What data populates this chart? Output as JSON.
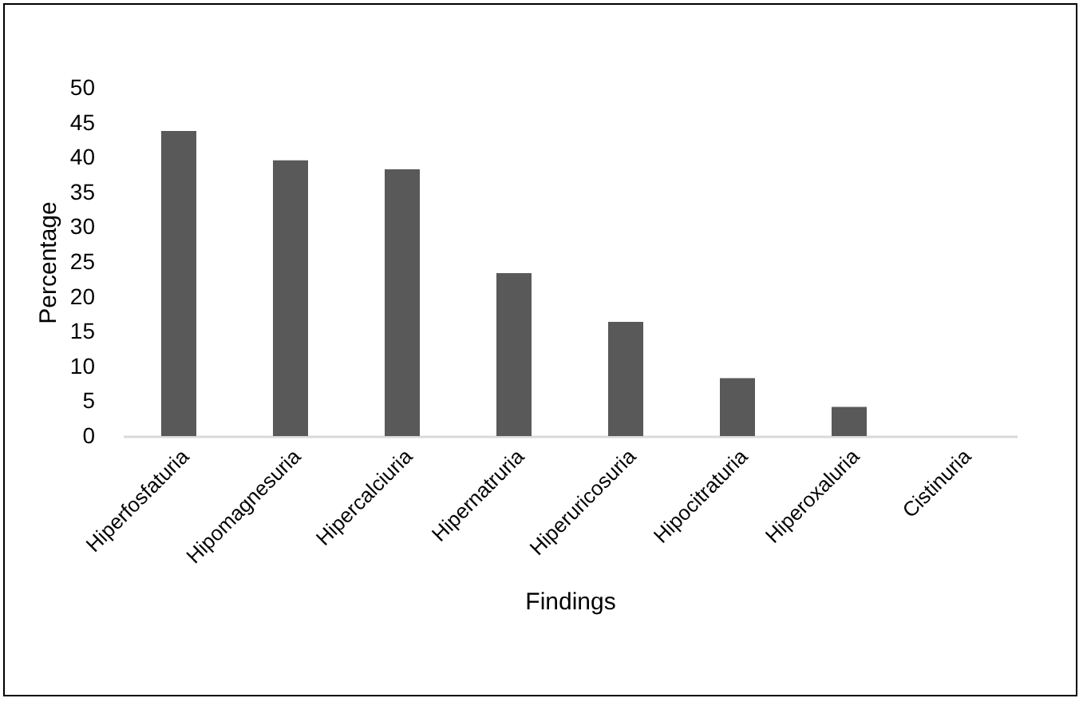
{
  "chart_data": {
    "type": "bar",
    "xlabel": "Findings",
    "ylabel": "Percentage",
    "categories": [
      "Hiperfosfaturia",
      "Hipomagnesuria",
      "Hipercalciuria",
      "Hipernatruria",
      "Hiperuricosuria",
      "Hipocitraturia",
      "Hiperoxaluria",
      "Cistinuria"
    ],
    "values": [
      43.8,
      39.6,
      38.3,
      23.4,
      16.4,
      8.3,
      4.2,
      0
    ],
    "color": "#595959",
    "ylim": [
      0,
      50
    ],
    "yticks": [
      0,
      5,
      10,
      15,
      20,
      25,
      30,
      35,
      40,
      45,
      50
    ],
    "grid": false
  }
}
